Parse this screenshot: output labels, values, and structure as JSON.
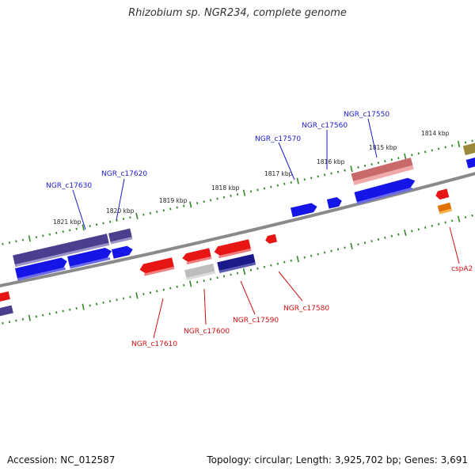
{
  "title": "Rhizobium sp. NGR234, complete genome",
  "footer": {
    "accession": "Accession: NC_012587",
    "topology": "Topology: circular; Length: 3,925,702 bp; Genes: 3,691"
  },
  "colors": {
    "backbone": "#808080",
    "tick": "#2e8b22",
    "forward_label": "#1a1acc",
    "reverse_label": "#cc1111"
  },
  "scale_labels": [
    "1821 kbp",
    "1820 kbp",
    "1819 kbp",
    "1818 kbp",
    "1817 kbp",
    "1816 kbp",
    "1815 kbp",
    "1814 kbp"
  ],
  "gene_labels": {
    "forward": [
      "NGR_c17630",
      "NGR_c17620",
      "NGR_c17570",
      "NGR_c17560",
      "NGR_c17550"
    ],
    "reverse": [
      "NGR_c17610",
      "NGR_c17600",
      "NGR_c17590",
      "NGR_c17580",
      "cspA2"
    ]
  }
}
